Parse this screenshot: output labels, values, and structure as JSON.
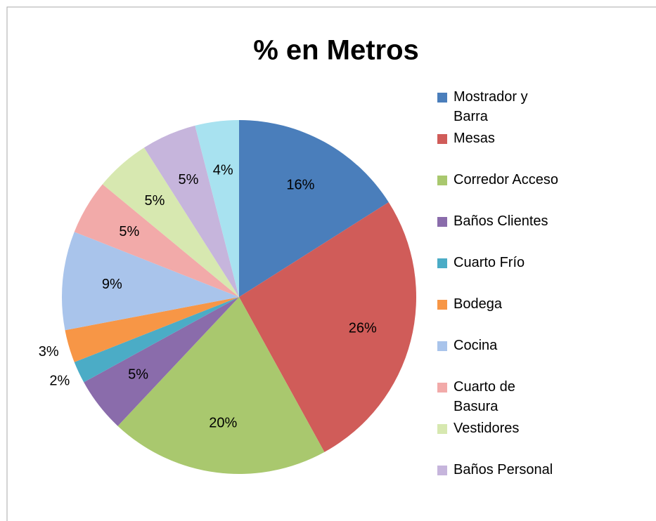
{
  "chart_data": {
    "type": "pie",
    "title": "% en Metros",
    "categories": [
      "Mostrador y Barra",
      "Mesas",
      "Corredor Acceso",
      "Baños Clientes",
      "Cuarto Frío",
      "Bodega",
      "Cocina",
      "Cuarto de Basura",
      "Vestidores",
      "Baños Personal",
      null
    ],
    "values": [
      16,
      26,
      20,
      5,
      2,
      3,
      9,
      5,
      5,
      5,
      4
    ],
    "value_labels": [
      "16%",
      "26%",
      "20%",
      "5%",
      "2%",
      "3%",
      "9%",
      "5%",
      "5%",
      "5%",
      "4%"
    ],
    "colors": [
      "#4a7ebb",
      "#d05c59",
      "#a9c86e",
      "#8a6cab",
      "#4bacc6",
      "#f79646",
      "#a9c4eb",
      "#f2aaa9",
      "#d7e8b0",
      "#c6b5dc",
      "#a8e2f0"
    ],
    "legend": "right"
  }
}
